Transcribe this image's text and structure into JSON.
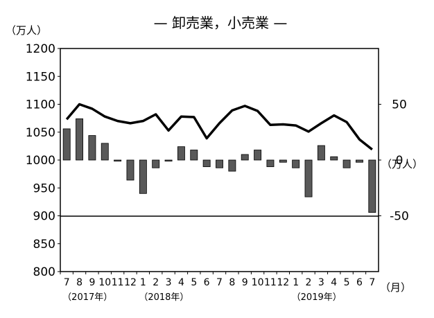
{
  "chart_data": {
    "type": "bar+line",
    "title": "— 卸売業，小売業 —",
    "left_unit": "（万人）",
    "right_unit": "（万人）",
    "x_unit": "（月）",
    "left_axis": {
      "ylim": [
        800,
        1200
      ],
      "ticks": [
        800,
        850,
        900,
        950,
        1000,
        1050,
        1100,
        1150,
        1200
      ]
    },
    "right_axis": {
      "ylim": [
        -100,
        100
      ],
      "ticks": [
        "-50",
        "0",
        "50"
      ],
      "tick_values": [
        -50,
        0,
        50
      ]
    },
    "categories": [
      "7",
      "8",
      "9",
      "10",
      "11",
      "12",
      "1",
      "2",
      "3",
      "4",
      "5",
      "6",
      "7",
      "8",
      "9",
      "10",
      "11",
      "12",
      "1",
      "2",
      "3",
      "4",
      "5",
      "6",
      "7"
    ],
    "year_labels": [
      {
        "label": "（2017年）",
        "index": 0
      },
      {
        "label": "（2018年）",
        "index": 6
      },
      {
        "label": "（2019年）",
        "index": 18
      }
    ],
    "line_values": [
      1073,
      1100,
      1092,
      1078,
      1070,
      1066,
      1070,
      1082,
      1053,
      1078,
      1077,
      1039,
      1066,
      1089,
      1097,
      1088,
      1063,
      1064,
      1062,
      1051,
      1066,
      1080,
      1068,
      1037,
      1019
    ],
    "bar_values": [
      28,
      37,
      22,
      15,
      -1,
      -18,
      -30,
      -7,
      -1,
      12,
      9,
      -6,
      -7,
      -10,
      5,
      9,
      -6,
      -2,
      -7,
      -33,
      13,
      3,
      -7,
      -2,
      -47
    ]
  },
  "colors": {
    "line": "#000000",
    "bar": "#595959",
    "bar_stroke": "#000000",
    "axis": "#000000"
  }
}
